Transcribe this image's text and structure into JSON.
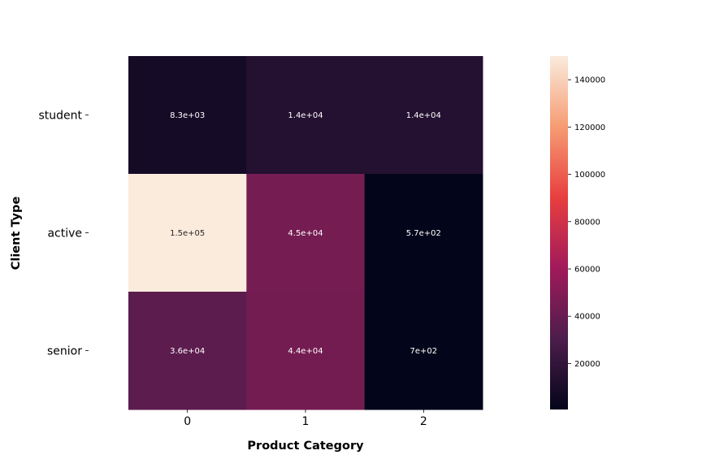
{
  "chart_data": {
    "type": "heatmap",
    "title": "",
    "xlabel": "Product Category",
    "ylabel": "Client Type",
    "x_categories": [
      "0",
      "1",
      "2"
    ],
    "y_categories": [
      "student",
      "active",
      "senior"
    ],
    "values": [
      [
        8300,
        14000,
        14000
      ],
      [
        150000,
        45000,
        570
      ],
      [
        36000,
        44000,
        700
      ]
    ],
    "annotations": [
      [
        "8.3e+03",
        "1.4e+04",
        "1.4e+04"
      ],
      [
        "1.5e+05",
        "4.5e+04",
        "5.7e+02"
      ],
      [
        "3.6e+04",
        "4.4e+04",
        "7e+02"
      ]
    ],
    "colorbar": {
      "min": 570,
      "max": 150000,
      "ticks": [
        20000,
        40000,
        60000,
        80000,
        100000,
        120000,
        140000
      ],
      "tick_labels": [
        "20000",
        "40000",
        "60000",
        "80000",
        "100000",
        "120000",
        "140000"
      ],
      "colormap": "rocket",
      "colormap_stops": [
        "#03051a",
        "#4c1d4b",
        "#a11a5b",
        "#e83f3f",
        "#f69c73",
        "#faebdd"
      ]
    },
    "grid": false,
    "legend": "colorbar-right"
  }
}
